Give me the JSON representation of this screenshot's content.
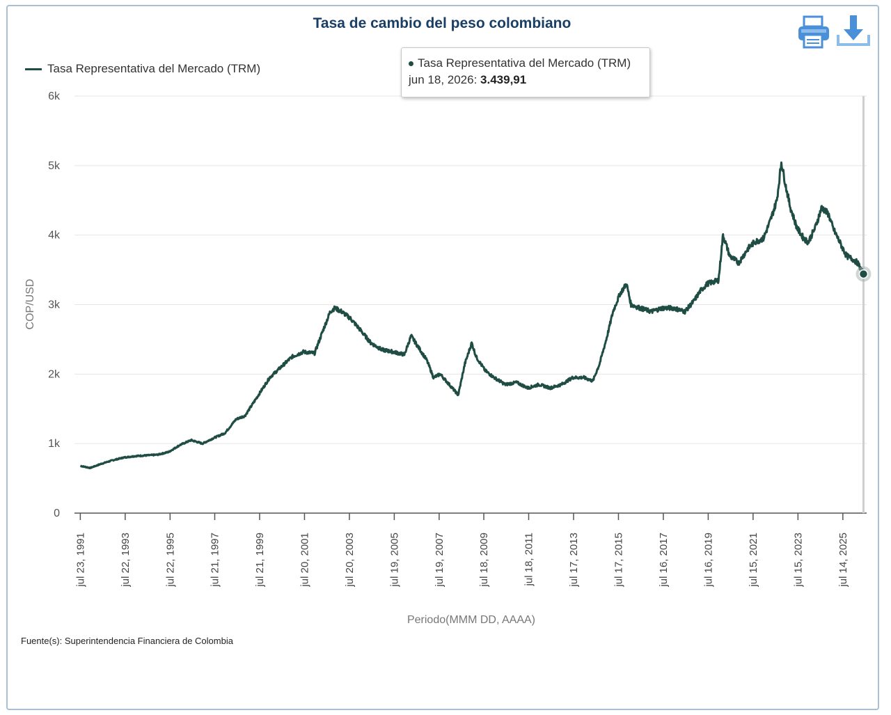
{
  "title": "Tasa de cambio del peso colombiano",
  "toolbar": {
    "print_icon": "printer-icon",
    "download_icon": "download-icon"
  },
  "legend": {
    "label": "Tasa Representativa del Mercado (TRM)"
  },
  "tooltip": {
    "series": "Tasa Representativa del Mercado (TRM)",
    "date": "jun 18, 2026:",
    "value": "3.439,91"
  },
  "source": "Fuente(s): Superintendencia Financiera de Colombia",
  "colors": {
    "line": "#1f4d44",
    "title": "#1a3f66",
    "grid": "#e6e6e6",
    "icon": "#4a90d9"
  },
  "chart_data": {
    "type": "line",
    "title": "Tasa de cambio del peso colombiano",
    "xlabel": "Periodo(MMM DD, AAAA)",
    "ylabel": "COP/USD",
    "ylim": [
      0,
      6000
    ],
    "y_ticks": [
      0,
      1000,
      2000,
      3000,
      4000,
      5000,
      6000
    ],
    "y_tick_labels": [
      "0",
      "1k",
      "2k",
      "3k",
      "4k",
      "5k",
      "6k"
    ],
    "x_tick_labels": [
      "jul 23, 1991",
      "jul 22, 1993",
      "jul 22, 1995",
      "jul 21, 1997",
      "jul 21, 1999",
      "jul 20, 2001",
      "jul 20, 2003",
      "jul 19, 2005",
      "jul 19, 2007",
      "jul 18, 2009",
      "jul 18, 2011",
      "jul 17, 2013",
      "jul 17, 2015",
      "jul 16, 2017",
      "jul 16, 2019",
      "jul 15, 2021",
      "jul 15, 2023",
      "jul 14, 2025"
    ],
    "x_ticks": [
      1991.56,
      1993.56,
      1995.56,
      1997.55,
      1999.55,
      2001.55,
      2003.55,
      2005.55,
      2007.55,
      2009.54,
      2011.54,
      2013.54,
      2015.54,
      2017.54,
      2019.54,
      2021.54,
      2023.54,
      2025.54
    ],
    "grid": true,
    "legend_position": "top-left",
    "series": [
      {
        "name": "Tasa Representativa del Mercado (TRM)",
        "x": [
          1991.56,
          1992.0,
          1992.5,
          1993.0,
          1993.5,
          1994.0,
          1994.5,
          1995.0,
          1995.5,
          1996.0,
          1996.5,
          1997.0,
          1997.5,
          1998.0,
          1998.5,
          1998.9,
          1999.2,
          1999.6,
          2000.0,
          2000.5,
          2001.0,
          2001.5,
          2002.0,
          2002.4,
          2002.7,
          2002.9,
          2003.2,
          2003.6,
          2004.0,
          2004.5,
          2005.0,
          2005.5,
          2006.0,
          2006.3,
          2006.6,
          2007.0,
          2007.3,
          2007.6,
          2008.0,
          2008.4,
          2008.7,
          2009.0,
          2009.2,
          2009.6,
          2010.0,
          2010.5,
          2011.0,
          2011.5,
          2012.0,
          2012.5,
          2013.0,
          2013.5,
          2014.0,
          2014.4,
          2014.7,
          2015.0,
          2015.3,
          2015.6,
          2015.9,
          2016.1,
          2016.5,
          2017.0,
          2017.5,
          2018.0,
          2018.5,
          2018.9,
          2019.2,
          2019.5,
          2020.0,
          2020.2,
          2020.5,
          2020.9,
          2021.3,
          2021.6,
          2022.0,
          2022.3,
          2022.6,
          2022.8,
          2023.0,
          2023.2,
          2023.5,
          2023.8,
          2024.0,
          2024.3,
          2024.6,
          2024.9,
          2025.1,
          2025.4,
          2025.7,
          2026.0,
          2026.2,
          2026.46
        ],
        "values": [
          680,
          650,
          710,
          760,
          800,
          820,
          830,
          840,
          880,
          980,
          1050,
          1000,
          1080,
          1150,
          1350,
          1400,
          1550,
          1750,
          1950,
          2100,
          2250,
          2320,
          2300,
          2650,
          2900,
          2950,
          2900,
          2800,
          2650,
          2450,
          2350,
          2320,
          2280,
          2550,
          2400,
          2200,
          1950,
          2000,
          1850,
          1700,
          2150,
          2450,
          2250,
          2050,
          1950,
          1850,
          1880,
          1800,
          1850,
          1800,
          1850,
          1950,
          1950,
          1900,
          2150,
          2500,
          2900,
          3150,
          3300,
          3000,
          2950,
          2900,
          2950,
          2950,
          2900,
          3050,
          3200,
          3300,
          3350,
          4000,
          3700,
          3600,
          3800,
          3900,
          3950,
          4200,
          4500,
          5050,
          4700,
          4400,
          4100,
          3950,
          3900,
          4100,
          4400,
          4300,
          4100,
          3900,
          3700,
          3650,
          3600,
          3439.91
        ]
      }
    ],
    "highlight": {
      "x": 2026.46,
      "value": 3439.91
    }
  }
}
